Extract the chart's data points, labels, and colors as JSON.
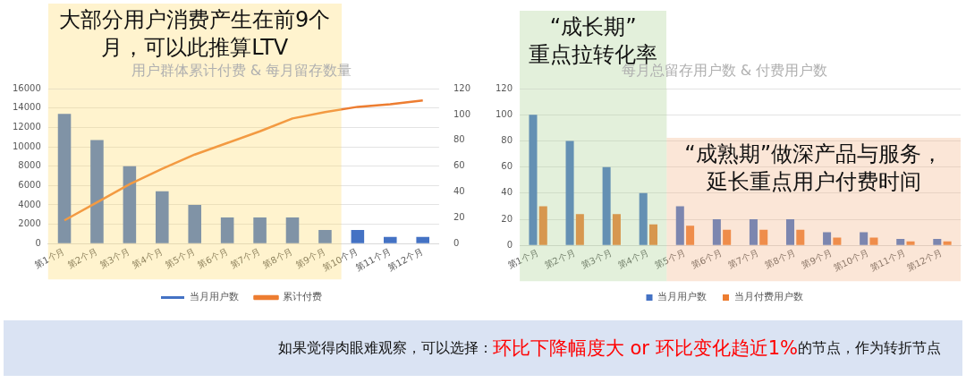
{
  "chart_data": [
    {
      "type": "bar",
      "title": "用户群体累计付费 & 每月留存数量",
      "categories": [
        "第1个月",
        "第2个月",
        "第3个月",
        "第4个月",
        "第5个月",
        "第6个月",
        "第7个月",
        "第8个月",
        "第9个月",
        "第10个月",
        "第11个月",
        "第12个月"
      ],
      "series": [
        {
          "name": "当月用户数",
          "type": "bar",
          "color": "#4472c4",
          "values": [
            13400,
            10700,
            8000,
            5400,
            4000,
            2700,
            2700,
            2700,
            1400,
            1400,
            700,
            700
          ]
        },
        {
          "name": "累计付费",
          "type": "line",
          "axis": "y2",
          "color": "#ed7d31",
          "values": [
            18,
            32,
            46,
            58,
            69,
            78,
            87,
            97,
            102,
            106,
            108,
            111
          ]
        }
      ],
      "ylim": [
        0,
        16000
      ],
      "yticks": [
        0,
        2000,
        4000,
        6000,
        8000,
        10000,
        12000,
        14000,
        16000
      ],
      "y2lim": [
        0,
        120
      ],
      "y2ticks": [
        0,
        20,
        40,
        60,
        80,
        100,
        120
      ],
      "bands": [
        {
          "axis": "x",
          "from": "第1个月",
          "to": "第9个月",
          "label": "大部分用户消费产生在前9个月，可以此推算LTV",
          "color": "#ffd966"
        }
      ],
      "grid": "y",
      "legend": "bottom",
      "marker": "none"
    },
    {
      "type": "bar",
      "title": "每月总留存用户数 & 付费用户数",
      "categories": [
        "第1个月",
        "第2个月",
        "第3个月",
        "第4个月",
        "第5个月",
        "第6个月",
        "第7个月",
        "第8个月",
        "第9个月",
        "第10个月",
        "第11个月",
        "第12个月"
      ],
      "series": [
        {
          "name": "当月用户数",
          "color": "#4472c4",
          "values": [
            100,
            80,
            60,
            40,
            30,
            20,
            20,
            20,
            10,
            10,
            5,
            5
          ]
        },
        {
          "name": "当月付费用户数",
          "color": "#ed7d31",
          "values": [
            30,
            24,
            24,
            16,
            15,
            12,
            12,
            12,
            6,
            6,
            3,
            3
          ]
        }
      ],
      "ylim": [
        0,
        120
      ],
      "yticks": [
        0,
        20,
        40,
        60,
        80,
        100,
        120
      ],
      "bands": [
        {
          "axis": "x",
          "from": "第1个月",
          "to": "第4个月",
          "label": "“成长期”重点拉转化率",
          "color": "#a9d08e"
        },
        {
          "axis": "x",
          "from": "第5个月",
          "to": "第12个月",
          "label": "“成熟期”做深产品与服务，延长重点用户付费时间",
          "color": "#f4b183"
        }
      ],
      "grid": "y",
      "legend": "bottom"
    },
    {
      "type": "other",
      "annotations": [
        "如果觉得肉眼难观察，可以选择：",
        "环比下降幅度大 or 环比变化趋近1%",
        "的节点，作为转折节点"
      ]
    }
  ]
}
